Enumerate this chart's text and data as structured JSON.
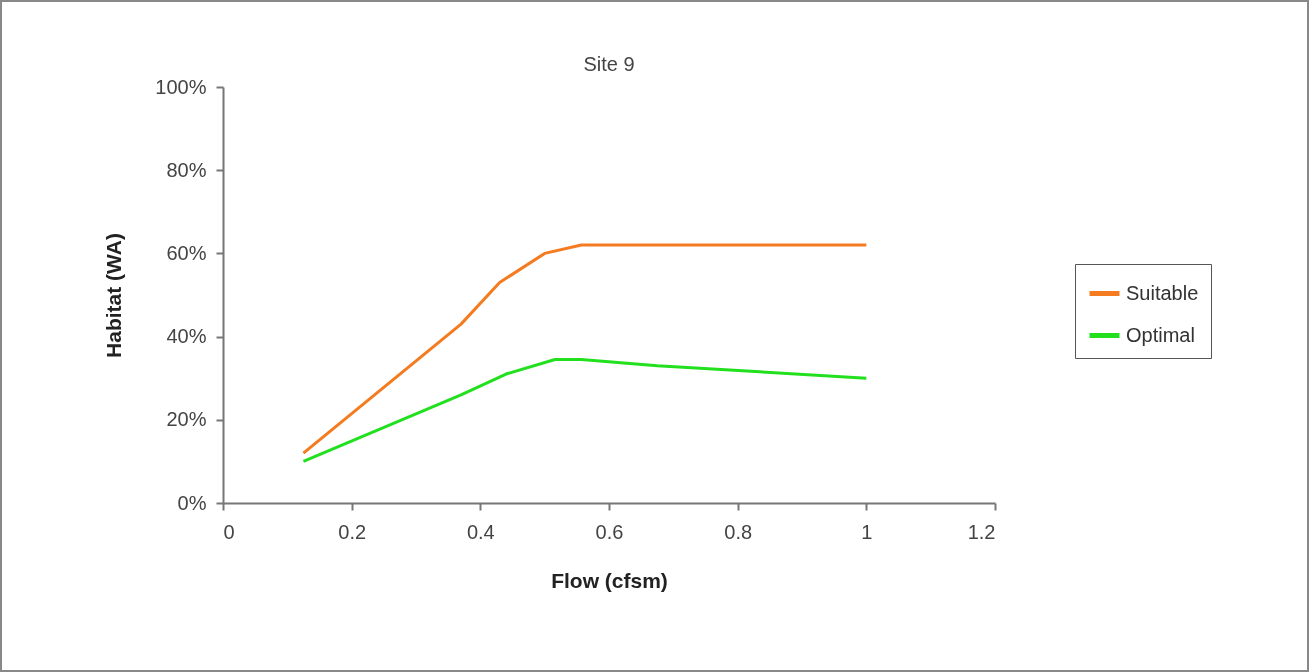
{
  "chart_data": {
    "type": "line",
    "title": "Site 9",
    "xlabel": "Flow (cfsm)",
    "ylabel": "Habitat (WA)",
    "xlim": [
      0,
      1.2
    ],
    "xticks": [
      0,
      0.2,
      0.4,
      0.6,
      0.8,
      1,
      1.2
    ],
    "ylim": [
      0,
      100
    ],
    "yticks": [
      {
        "value": 0,
        "label": "0%"
      },
      {
        "value": 20,
        "label": "20%"
      },
      {
        "value": 40,
        "label": "40%"
      },
      {
        "value": 60,
        "label": "60%"
      },
      {
        "value": 80,
        "label": "80%"
      },
      {
        "value": 100,
        "label": "100%"
      }
    ],
    "grid": false,
    "legend": "right",
    "marker": "none",
    "line_style": "solid",
    "series": [
      {
        "name": "Suitable",
        "color": "#f47b20",
        "x": [
          0.125,
          0.37,
          0.43,
          0.5,
          0.557,
          1
        ],
        "values": [
          12,
          43,
          53,
          60,
          62,
          62
        ]
      },
      {
        "name": "Optimal",
        "color": "#22e01e",
        "x": [
          0.125,
          0.37,
          0.44,
          0.516,
          0.557,
          0.675,
          1
        ],
        "values": [
          10,
          26,
          31,
          34.5,
          34.5,
          33,
          30
        ]
      }
    ]
  }
}
